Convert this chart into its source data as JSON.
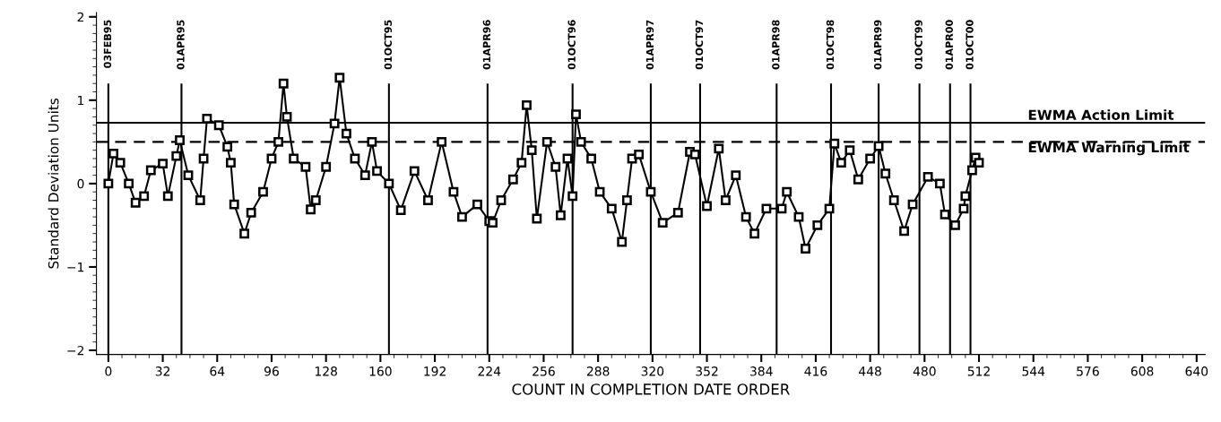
{
  "chart_data": {
    "type": "line",
    "xlabel": "COUNT IN COMPLETION DATE ORDER",
    "ylabel": "Standard Deviation Units",
    "series": [
      {
        "color": "#000000",
        "x": [
          0,
          3,
          7,
          12,
          16,
          21,
          25,
          32,
          35,
          40,
          42,
          47,
          54,
          56,
          58,
          65,
          70,
          72,
          74,
          80,
          84,
          91,
          96,
          100,
          103,
          105,
          109,
          116,
          119,
          122,
          128,
          133,
          136,
          140,
          145,
          151,
          155,
          158,
          165,
          172,
          180,
          188,
          196,
          203,
          208,
          217,
          224,
          226,
          231,
          238,
          243,
          246,
          249,
          252,
          258,
          263,
          266,
          270,
          273,
          275,
          278,
          284,
          289,
          296,
          302,
          305,
          308,
          312,
          319,
          326,
          335,
          342,
          345,
          352,
          359,
          363,
          369,
          375,
          380,
          387,
          396,
          399,
          406,
          410,
          417,
          424,
          427,
          431,
          436,
          441,
          448,
          453,
          457,
          462,
          468,
          473,
          482,
          489,
          492,
          498,
          503,
          504,
          508,
          510,
          512
        ],
        "values": [
          0.0,
          0.36,
          0.25,
          0.0,
          -0.23,
          -0.15,
          0.16,
          0.24,
          -0.15,
          0.33,
          0.52,
          0.1,
          -0.2,
          0.3,
          0.78,
          0.7,
          0.44,
          0.25,
          -0.25,
          -0.6,
          -0.35,
          -0.1,
          0.3,
          0.5,
          1.2,
          0.8,
          0.3,
          0.2,
          -0.31,
          -0.2,
          0.2,
          0.72,
          1.27,
          0.6,
          0.3,
          0.1,
          0.5,
          0.15,
          0.0,
          -0.32,
          0.15,
          -0.2,
          0.5,
          -0.1,
          -0.4,
          -0.25,
          -0.45,
          -0.47,
          -0.2,
          0.05,
          0.25,
          0.94,
          0.4,
          -0.42,
          0.5,
          0.2,
          -0.38,
          0.3,
          -0.15,
          0.83,
          0.5,
          0.3,
          -0.1,
          -0.3,
          -0.7,
          -0.2,
          0.3,
          0.35,
          -0.1,
          -0.47,
          -0.35,
          0.38,
          0.35,
          -0.27,
          0.42,
          -0.2,
          0.1,
          -0.4,
          -0.6,
          -0.3,
          -0.3,
          -0.1,
          -0.4,
          -0.78,
          -0.5,
          -0.3,
          0.48,
          0.25,
          0.4,
          0.05,
          0.3,
          0.45,
          0.12,
          -0.2,
          -0.57,
          -0.25,
          0.08,
          0.0,
          -0.37,
          -0.5,
          -0.3,
          -0.15,
          0.16,
          0.31,
          0.25
        ]
      }
    ],
    "marker": "square",
    "line_style": "solid",
    "grid": false,
    "legend": false,
    "xlim": [
      -7,
      645
    ],
    "xticks": [
      0,
      32,
      64,
      96,
      128,
      160,
      192,
      224,
      256,
      288,
      320,
      352,
      384,
      416,
      448,
      480,
      512,
      544,
      576,
      608,
      640
    ],
    "ylim": [
      -2.05,
      2.05
    ],
    "yticks": [
      -2,
      -1,
      0,
      1,
      2
    ],
    "ref_lines": [
      {
        "axis": "y",
        "value": 0.73,
        "label": "EWMA Action Limit",
        "line_style": "solid",
        "color": "#000000"
      },
      {
        "axis": "y",
        "value": 0.5,
        "label": "EWMA Warning Limit",
        "line_style": "dashed",
        "color": "#000000"
      },
      {
        "axis": "x",
        "value": 0,
        "label": "03FEB95",
        "color": "#000000"
      },
      {
        "axis": "x",
        "value": 43,
        "label": "01APR95",
        "color": "#000000"
      },
      {
        "axis": "x",
        "value": 165,
        "label": "01OCT95",
        "color": "#000000"
      },
      {
        "axis": "x",
        "value": 223,
        "label": "01APR96",
        "color": "#000000"
      },
      {
        "axis": "x",
        "value": 273,
        "label": "01OCT96",
        "color": "#000000"
      },
      {
        "axis": "x",
        "value": 319,
        "label": "01APR97",
        "color": "#000000"
      },
      {
        "axis": "x",
        "value": 348,
        "label": "01OCT97",
        "color": "#000000"
      },
      {
        "axis": "x",
        "value": 393,
        "label": "01APR98",
        "color": "#000000"
      },
      {
        "axis": "x",
        "value": 425,
        "label": "01OCT98",
        "color": "#000000"
      },
      {
        "axis": "x",
        "value": 453,
        "label": "01APR99",
        "color": "#000000"
      },
      {
        "axis": "x",
        "value": 477,
        "label": "01OCT99",
        "color": "#000000"
      },
      {
        "axis": "x",
        "value": 495,
        "label": "01APR00",
        "color": "#000000"
      },
      {
        "axis": "x",
        "value": 507,
        "label": "01OCT00",
        "color": "#000000"
      }
    ]
  }
}
